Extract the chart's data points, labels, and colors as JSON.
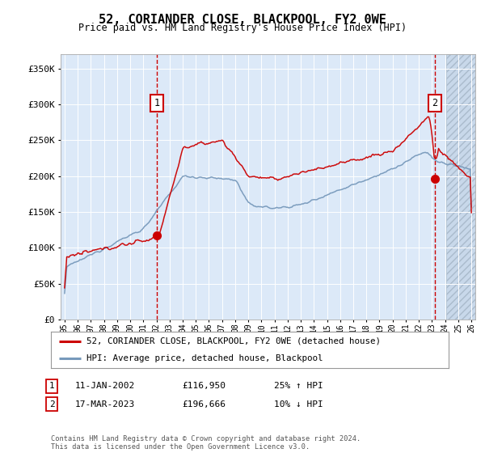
{
  "title": "52, CORIANDER CLOSE, BLACKPOOL, FY2 0WE",
  "subtitle": "Price paid vs. HM Land Registry's House Price Index (HPI)",
  "legend_line1": "52, CORIANDER CLOSE, BLACKPOOL, FY2 0WE (detached house)",
  "legend_line2": "HPI: Average price, detached house, Blackpool",
  "annotation1_label": "1",
  "annotation1_date": "11-JAN-2002",
  "annotation1_price": "£116,950",
  "annotation1_hpi": "25% ↑ HPI",
  "annotation2_label": "2",
  "annotation2_date": "17-MAR-2023",
  "annotation2_price": "£196,666",
  "annotation2_hpi": "10% ↓ HPI",
  "footer": "Contains HM Land Registry data © Crown copyright and database right 2024.\nThis data is licensed under the Open Government Licence v3.0.",
  "ylim": [
    0,
    370000
  ],
  "yticks": [
    0,
    50000,
    100000,
    150000,
    200000,
    250000,
    300000,
    350000
  ],
  "ytick_labels": [
    "£0",
    "£50K",
    "£100K",
    "£150K",
    "£200K",
    "£250K",
    "£300K",
    "£350K"
  ],
  "plot_bg_color": "#dce9f8",
  "hatch_color": "#c8d8ea",
  "red_line_color": "#cc0000",
  "blue_line_color": "#7799bb",
  "dashed_line_color": "#cc0000",
  "annotation_box_color": "#cc0000",
  "grid_color": "#ffffff",
  "sale1_x": 2002.03,
  "sale1_y": 116950,
  "sale2_x": 2023.21,
  "sale2_y": 196666,
  "xmin": 1994.7,
  "xmax": 2026.3
}
